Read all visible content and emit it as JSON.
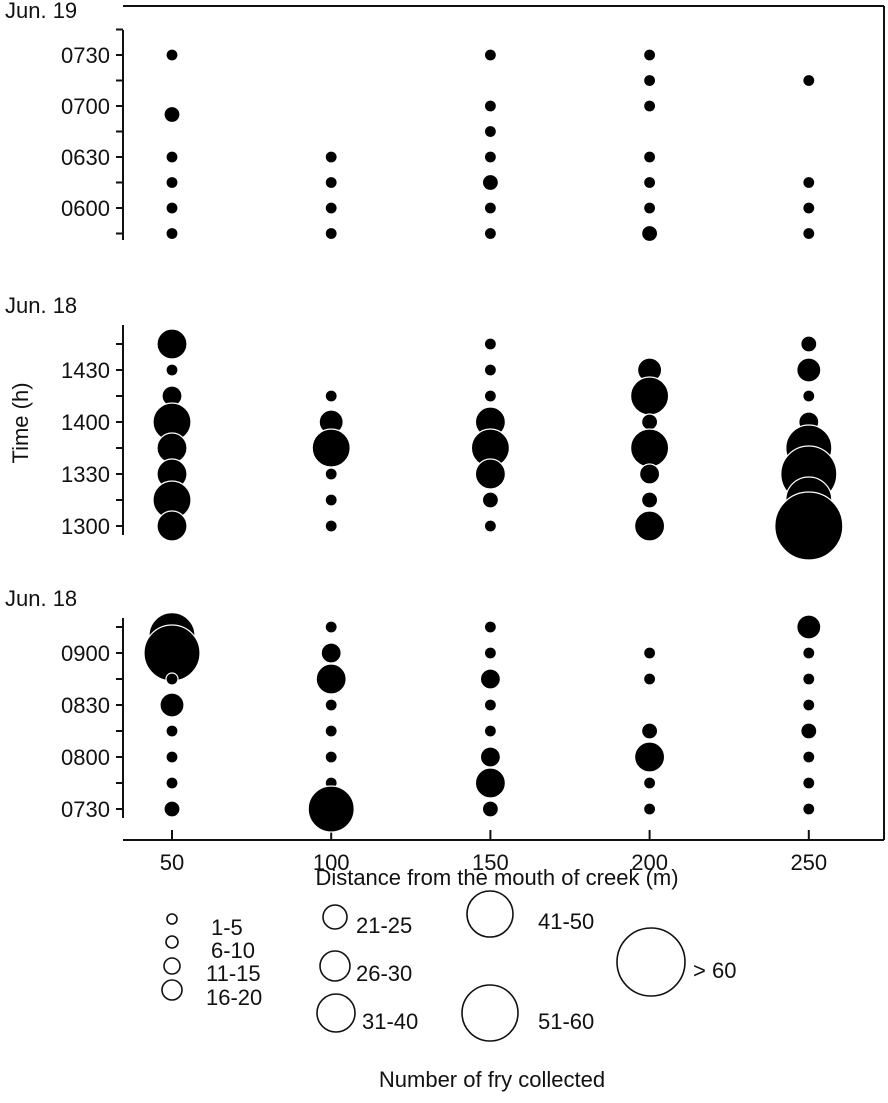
{
  "chart_data": {
    "type": "scatter",
    "subtype": "bubble",
    "xlabel": "Distance from the mouth of creek (m)",
    "ylabel": "Time (h)",
    "x_ticks": [
      "50",
      "100",
      "150",
      "200",
      "250"
    ],
    "x_values": [
      50,
      100,
      150,
      200,
      250
    ],
    "xlim": [
      35,
      265
    ],
    "grid": false,
    "size_legend_title": "Number of fry collected",
    "size_classes": [
      "1-5",
      "6-10",
      "11-15",
      "16-20",
      "21-25",
      "26-30",
      "31-40",
      "41-50",
      "51-60",
      "> 60"
    ],
    "panels": [
      {
        "label": "Jun. 19",
        "y_ticks": [
          "0730",
          "0700",
          "0630",
          "0600"
        ],
        "ylim": [
          "0550",
          "0740"
        ],
        "points": [
          {
            "x": 50,
            "time": "0730",
            "class": "6-10"
          },
          {
            "x": 50,
            "time": "0655",
            "class": "11-15"
          },
          {
            "x": 50,
            "time": "0630",
            "class": "6-10"
          },
          {
            "x": 50,
            "time": "0615",
            "class": "6-10"
          },
          {
            "x": 50,
            "time": "0600",
            "class": "6-10"
          },
          {
            "x": 50,
            "time": "0545",
            "class": "6-10"
          },
          {
            "x": 100,
            "time": "0630",
            "class": "6-10"
          },
          {
            "x": 100,
            "time": "0615",
            "class": "6-10"
          },
          {
            "x": 100,
            "time": "0600",
            "class": "6-10"
          },
          {
            "x": 100,
            "time": "0545",
            "class": "6-10"
          },
          {
            "x": 150,
            "time": "0730",
            "class": "6-10"
          },
          {
            "x": 150,
            "time": "0700",
            "class": "6-10"
          },
          {
            "x": 150,
            "time": "0645",
            "class": "6-10"
          },
          {
            "x": 150,
            "time": "0630",
            "class": "6-10"
          },
          {
            "x": 150,
            "time": "0615",
            "class": "11-15"
          },
          {
            "x": 150,
            "time": "0600",
            "class": "6-10"
          },
          {
            "x": 150,
            "time": "0545",
            "class": "6-10"
          },
          {
            "x": 200,
            "time": "0730",
            "class": "6-10"
          },
          {
            "x": 200,
            "time": "0715",
            "class": "6-10"
          },
          {
            "x": 200,
            "time": "0700",
            "class": "6-10"
          },
          {
            "x": 200,
            "time": "0630",
            "class": "6-10"
          },
          {
            "x": 200,
            "time": "0615",
            "class": "6-10"
          },
          {
            "x": 200,
            "time": "0600",
            "class": "6-10"
          },
          {
            "x": 200,
            "time": "0545",
            "class": "11-15"
          },
          {
            "x": 250,
            "time": "0715",
            "class": "6-10"
          },
          {
            "x": 250,
            "time": "0615",
            "class": "6-10"
          },
          {
            "x": 250,
            "time": "0600",
            "class": "6-10"
          },
          {
            "x": 250,
            "time": "0545",
            "class": "6-10"
          }
        ]
      },
      {
        "label": "Jun. 18",
        "y_ticks": [
          "1430",
          "1400",
          "1330",
          "1300"
        ],
        "ylim": [
          "1255",
          "1455"
        ],
        "points": [
          {
            "x": 50,
            "time": "1445",
            "class": "26-30"
          },
          {
            "x": 50,
            "time": "1430",
            "class": "6-10"
          },
          {
            "x": 50,
            "time": "1415",
            "class": "16-20"
          },
          {
            "x": 50,
            "time": "1400",
            "class": "31-40"
          },
          {
            "x": 50,
            "time": "1345",
            "class": "26-30"
          },
          {
            "x": 50,
            "time": "1330",
            "class": "26-30"
          },
          {
            "x": 50,
            "time": "1315",
            "class": "31-40"
          },
          {
            "x": 50,
            "time": "1300",
            "class": "26-30"
          },
          {
            "x": 100,
            "time": "1415",
            "class": "6-10"
          },
          {
            "x": 100,
            "time": "1400",
            "class": "21-25"
          },
          {
            "x": 100,
            "time": "1345",
            "class": "31-40"
          },
          {
            "x": 100,
            "time": "1330",
            "class": "6-10"
          },
          {
            "x": 100,
            "time": "1315",
            "class": "6-10"
          },
          {
            "x": 100,
            "time": "1300",
            "class": "6-10"
          },
          {
            "x": 150,
            "time": "1445",
            "class": "6-10"
          },
          {
            "x": 150,
            "time": "1430",
            "class": "6-10"
          },
          {
            "x": 150,
            "time": "1415",
            "class": "6-10"
          },
          {
            "x": 150,
            "time": "1400",
            "class": "26-30"
          },
          {
            "x": 150,
            "time": "1345",
            "class": "31-40"
          },
          {
            "x": 150,
            "time": "1330",
            "class": "26-30"
          },
          {
            "x": 150,
            "time": "1315",
            "class": "11-15"
          },
          {
            "x": 150,
            "time": "1300",
            "class": "6-10"
          },
          {
            "x": 200,
            "time": "1430",
            "class": "21-25"
          },
          {
            "x": 200,
            "time": "1415",
            "class": "31-40"
          },
          {
            "x": 200,
            "time": "1400",
            "class": "11-15"
          },
          {
            "x": 200,
            "time": "1345",
            "class": "31-40"
          },
          {
            "x": 200,
            "time": "1330",
            "class": "16-20"
          },
          {
            "x": 200,
            "time": "1315",
            "class": "11-15"
          },
          {
            "x": 200,
            "time": "1300",
            "class": "26-30"
          },
          {
            "x": 250,
            "time": "1445",
            "class": "11-15"
          },
          {
            "x": 250,
            "time": "1430",
            "class": "21-25"
          },
          {
            "x": 250,
            "time": "1415",
            "class": "6-10"
          },
          {
            "x": 250,
            "time": "1400",
            "class": "16-20"
          },
          {
            "x": 250,
            "time": "1345",
            "class": "41-50"
          },
          {
            "x": 250,
            "time": "1330",
            "class": "51-60"
          },
          {
            "x": 250,
            "time": "1315",
            "class": "41-50"
          },
          {
            "x": 250,
            "time": "1300",
            "class": "> 60"
          }
        ]
      },
      {
        "label": "Jun. 18",
        "y_ticks": [
          "0900",
          "0830",
          "0800",
          "0730"
        ],
        "ylim": [
          "0725",
          "0920"
        ],
        "points": [
          {
            "x": 50,
            "time": "0910",
            "class": "41-50"
          },
          {
            "x": 50,
            "time": "0900",
            "class": "51-60"
          },
          {
            "x": 50,
            "time": "0845",
            "class": "6-10"
          },
          {
            "x": 50,
            "time": "0830",
            "class": "21-25"
          },
          {
            "x": 50,
            "time": "0815",
            "class": "6-10"
          },
          {
            "x": 50,
            "time": "0800",
            "class": "6-10"
          },
          {
            "x": 50,
            "time": "0745",
            "class": "6-10"
          },
          {
            "x": 50,
            "time": "0730",
            "class": "11-15"
          },
          {
            "x": 100,
            "time": "0915",
            "class": "6-10"
          },
          {
            "x": 100,
            "time": "0900",
            "class": "16-20"
          },
          {
            "x": 100,
            "time": "0845",
            "class": "26-30"
          },
          {
            "x": 100,
            "time": "0830",
            "class": "6-10"
          },
          {
            "x": 100,
            "time": "0815",
            "class": "6-10"
          },
          {
            "x": 100,
            "time": "0800",
            "class": "6-10"
          },
          {
            "x": 100,
            "time": "0745",
            "class": "6-10"
          },
          {
            "x": 100,
            "time": "0730",
            "class": "41-50"
          },
          {
            "x": 150,
            "time": "0915",
            "class": "6-10"
          },
          {
            "x": 150,
            "time": "0900",
            "class": "6-10"
          },
          {
            "x": 150,
            "time": "0845",
            "class": "16-20"
          },
          {
            "x": 150,
            "time": "0830",
            "class": "6-10"
          },
          {
            "x": 150,
            "time": "0815",
            "class": "6-10"
          },
          {
            "x": 150,
            "time": "0800",
            "class": "16-20"
          },
          {
            "x": 150,
            "time": "0745",
            "class": "26-30"
          },
          {
            "x": 150,
            "time": "0730",
            "class": "11-15"
          },
          {
            "x": 200,
            "time": "0900",
            "class": "6-10"
          },
          {
            "x": 200,
            "time": "0845",
            "class": "6-10"
          },
          {
            "x": 200,
            "time": "0815",
            "class": "11-15"
          },
          {
            "x": 200,
            "time": "0800",
            "class": "26-30"
          },
          {
            "x": 200,
            "time": "0745",
            "class": "6-10"
          },
          {
            "x": 200,
            "time": "0730",
            "class": "6-10"
          },
          {
            "x": 250,
            "time": "0915",
            "class": "21-25"
          },
          {
            "x": 250,
            "time": "0900",
            "class": "6-10"
          },
          {
            "x": 250,
            "time": "0845",
            "class": "6-10"
          },
          {
            "x": 250,
            "time": "0830",
            "class": "6-10"
          },
          {
            "x": 250,
            "time": "0815",
            "class": "11-15"
          },
          {
            "x": 250,
            "time": "0800",
            "class": "6-10"
          },
          {
            "x": 250,
            "time": "0745",
            "class": "6-10"
          },
          {
            "x": 250,
            "time": "0730",
            "class": "6-10"
          }
        ]
      }
    ]
  }
}
